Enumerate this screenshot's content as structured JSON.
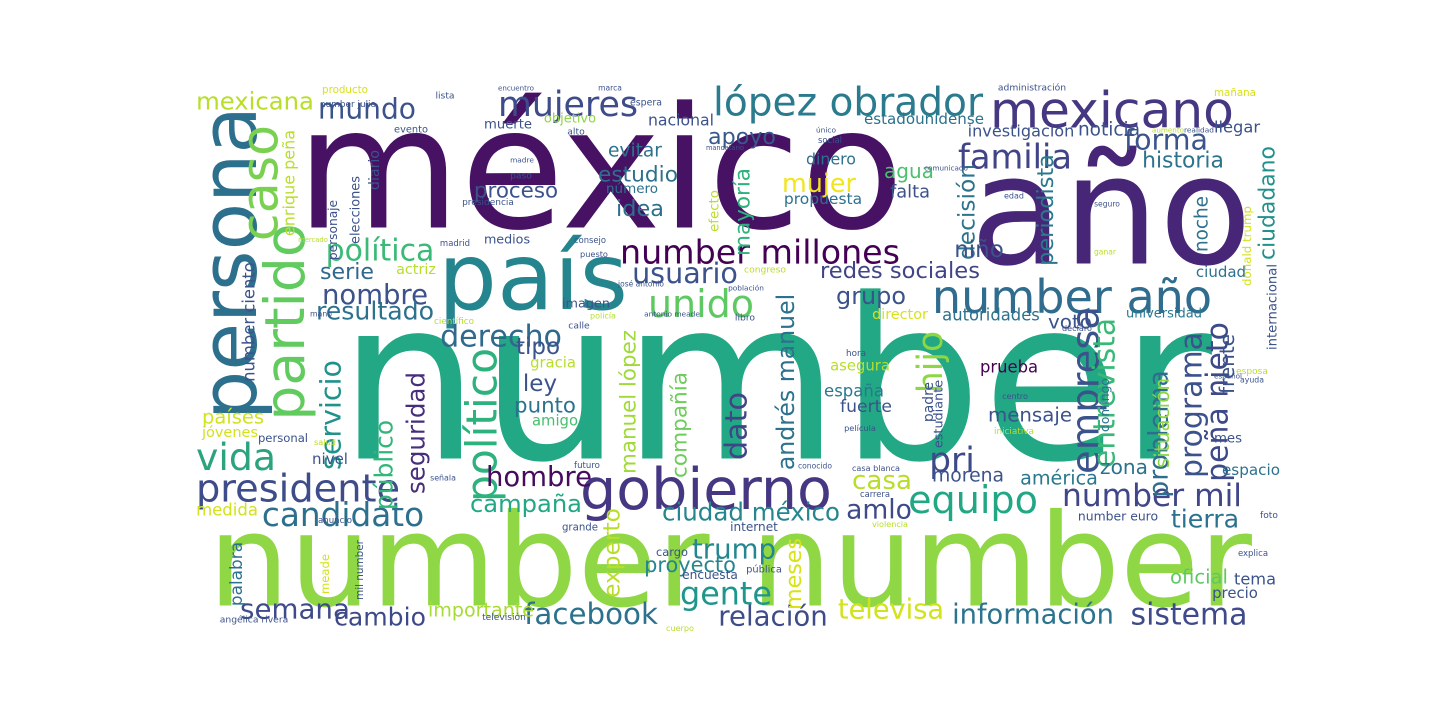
{
  "word_cloud": {
    "colors": {
      "background": "#ffffff",
      "palette": [
        "#440154",
        "#482878",
        "#3e4a89",
        "#31688e",
        "#26828e",
        "#1f9e89",
        "#35b779",
        "#6ece58",
        "#b5de2b",
        "#fde725"
      ]
    },
    "words": [
      {
        "text": "number",
        "color": "#22a884"
      },
      {
        "text": "méxico",
        "color": "#471164"
      },
      {
        "text": "number number",
        "color": "#8fd744"
      },
      {
        "text": "año",
        "color": "#482677"
      },
      {
        "text": "persona",
        "color": "#2d708e"
      },
      {
        "text": "país",
        "color": "#25858e"
      },
      {
        "text": "gobierno",
        "color": "#453781"
      },
      {
        "text": "number año",
        "color": "#2f6c8e"
      },
      {
        "text": "partido",
        "color": "#62cb5f"
      },
      {
        "text": "mexicano",
        "color": "#453781"
      },
      {
        "text": "caso",
        "color": "#7ad151"
      },
      {
        "text": "number millones",
        "color": "#440154"
      },
      {
        "text": "mundo",
        "color": "#3b528b"
      },
      {
        "text": "lópez obrador",
        "color": "#2a7b8e"
      },
      {
        "text": "mujeres",
        "color": "#3e4c8a"
      },
      {
        "text": "unido",
        "color": "#5ec962"
      },
      {
        "text": "empresa",
        "color": "#3b528b"
      },
      {
        "text": "presidente",
        "color": "#3e4c8a"
      },
      {
        "text": "equipo",
        "color": "#22a785"
      },
      {
        "text": "gente",
        "color": "#1f968b"
      },
      {
        "text": "vida",
        "color": "#2ca37f"
      },
      {
        "text": "number mil",
        "color": "#404688"
      },
      {
        "text": "candidato",
        "color": "#2d708e"
      },
      {
        "text": "peña nieto",
        "color": "#3e4989"
      },
      {
        "text": "forma",
        "color": "#3a548c"
      },
      {
        "text": "familia",
        "color": "#414487"
      },
      {
        "text": "político",
        "color": "#2db27d"
      },
      {
        "text": "hombre",
        "color": "#460b5e"
      },
      {
        "text": "servicio",
        "color": "#20928c"
      },
      {
        "text": "andrés manuel",
        "color": "#2c718e"
      },
      {
        "text": "derecho",
        "color": "#30698e"
      },
      {
        "text": "política",
        "color": "#3aba76"
      },
      {
        "text": "nombre",
        "color": "#3b528b"
      },
      {
        "text": "campaña",
        "color": "#22a884"
      },
      {
        "text": "programa",
        "color": "#3b528b"
      },
      {
        "text": "problema",
        "color": "#2f6c8e"
      },
      {
        "text": "hijo",
        "color": "#8ed645"
      },
      {
        "text": "dato",
        "color": "#414487"
      },
      {
        "text": "amlo",
        "color": "#3e4a89"
      },
      {
        "text": "trump",
        "color": "#24868e"
      },
      {
        "text": "ciudad méxico",
        "color": "#24868e"
      },
      {
        "text": "casa",
        "color": "#b8de29"
      },
      {
        "text": "mujer",
        "color": "#f1e51d"
      },
      {
        "text": "usuario",
        "color": "#3b528b"
      },
      {
        "text": "pri",
        "color": "#3e4989"
      },
      {
        "text": "facebook",
        "color": "#2c718e"
      },
      {
        "text": "información",
        "color": "#2c738e"
      },
      {
        "text": "relación",
        "color": "#3e4c8a"
      },
      {
        "text": "sistema",
        "color": "#3e4a89"
      },
      {
        "text": "semana",
        "color": "#3e4a89"
      },
      {
        "text": "cambio",
        "color": "#3e4989"
      },
      {
        "text": "televisa",
        "color": "#d2e21b"
      },
      {
        "text": "seguridad",
        "color": "#472d7b"
      },
      {
        "text": "público",
        "color": "#32b67a"
      },
      {
        "text": "entrevista",
        "color": "#38b977"
      },
      {
        "text": "historia",
        "color": "#2c738e"
      },
      {
        "text": "mexicana",
        "color": "#b8de29"
      },
      {
        "text": "proyecto",
        "color": "#24868e"
      },
      {
        "text": "manuel lópez",
        "color": "#a0da39"
      },
      {
        "text": "grupo",
        "color": "#3b528b"
      },
      {
        "text": "redes sociales",
        "color": "#414487"
      },
      {
        "text": "apoyo",
        "color": "#38588c"
      },
      {
        "text": "proceso",
        "color": "#3b528b"
      },
      {
        "text": "estudio",
        "color": "#2d708e"
      },
      {
        "text": "idea",
        "color": "#2d708e"
      },
      {
        "text": "mayoría",
        "color": "#2db27d"
      },
      {
        "text": "agua",
        "color": "#4ac16d"
      },
      {
        "text": "decisión",
        "color": "#2c738e"
      },
      {
        "text": "periodista",
        "color": "#2a788e"
      },
      {
        "text": "ciudadano",
        "color": "#21918c"
      },
      {
        "text": "resultado",
        "color": "#2c718e"
      },
      {
        "text": "serie",
        "color": "#31688e"
      },
      {
        "text": "tipo",
        "color": "#3b528b"
      },
      {
        "text": "ley",
        "color": "#3b528b"
      },
      {
        "text": "punto",
        "color": "#2c718e"
      },
      {
        "text": "amigo",
        "color": "#46c06f"
      },
      {
        "text": "compañía",
        "color": "#6ccd5a"
      },
      {
        "text": "experto",
        "color": "#b8de29"
      },
      {
        "text": "meses",
        "color": "#d8e219"
      },
      {
        "text": "importante",
        "color": "#a8db34"
      },
      {
        "text": "tierra",
        "color": "#2c728e"
      },
      {
        "text": "tema",
        "color": "#3b528b"
      },
      {
        "text": "oficial",
        "color": "#5ec962"
      },
      {
        "text": "zona",
        "color": "#2c728e"
      },
      {
        "text": "américa",
        "color": "#2a788e"
      },
      {
        "text": "morena",
        "color": "#3b528b"
      },
      {
        "text": "mensaje",
        "color": "#3b528b"
      },
      {
        "text": "españa",
        "color": "#2a788e"
      },
      {
        "text": "asegura",
        "color": "#b8de29"
      },
      {
        "text": "fuerte",
        "color": "#3b528b"
      },
      {
        "text": "niño",
        "color": "#3b528b"
      },
      {
        "text": "voto",
        "color": "#3b528b"
      },
      {
        "text": "director",
        "color": "#d8e219"
      },
      {
        "text": "autoridades",
        "color": "#2c718e"
      },
      {
        "text": "universidad",
        "color": "#2a788e"
      },
      {
        "text": "frente",
        "color": "#3b528b"
      },
      {
        "text": "situación",
        "color": "#8ed645"
      },
      {
        "text": "prueba",
        "color": "#440154"
      },
      {
        "text": "dinero",
        "color": "#2c718e"
      },
      {
        "text": "propuesta",
        "color": "#2c718e"
      },
      {
        "text": "falta",
        "color": "#3b528b"
      },
      {
        "text": "noticia",
        "color": "#3b528b"
      },
      {
        "text": "llegar",
        "color": "#3b528b"
      },
      {
        "text": "nacional",
        "color": "#3b528b"
      },
      {
        "text": "evitar",
        "color": "#2c718e"
      },
      {
        "text": "número",
        "color": "#2c718e"
      },
      {
        "text": "mes",
        "color": "#3b528b"
      },
      {
        "text": "espacio",
        "color": "#2c728e"
      },
      {
        "text": "internet",
        "color": "#3b528b"
      },
      {
        "text": "encuesta",
        "color": "#3b528b"
      },
      {
        "text": "precio",
        "color": "#3b528b"
      },
      {
        "text": "number euro",
        "color": "#3b528b"
      },
      {
        "text": "ciudad",
        "color": "#2c718e"
      },
      {
        "text": "noche",
        "color": "#2c718e"
      },
      {
        "text": "number ciento",
        "color": "#3b528b"
      },
      {
        "text": "enrique peña",
        "color": "#b8de29"
      },
      {
        "text": "países",
        "color": "#d2e21b"
      },
      {
        "text": "jóvenes",
        "color": "#d2e21b"
      },
      {
        "text": "medida",
        "color": "#d2e21b"
      },
      {
        "text": "palabra",
        "color": "#2c718e"
      },
      {
        "text": "mil number",
        "color": "#3b528b"
      },
      {
        "text": "meade",
        "color": "#d2e21b"
      },
      {
        "text": "nivel",
        "color": "#3b528b"
      },
      {
        "text": "personal",
        "color": "#3b528b"
      },
      {
        "text": "actriz",
        "color": "#b8de29"
      },
      {
        "text": "medios",
        "color": "#3b528b"
      },
      {
        "text": "imagen",
        "color": "#3b528b"
      },
      {
        "text": "gracia",
        "color": "#b8de29"
      },
      {
        "text": "objetivo",
        "color": "#8ed645"
      },
      {
        "text": "muerte",
        "color": "#3b528b"
      },
      {
        "text": "investigación",
        "color": "#3b528b"
      },
      {
        "text": "estadounidense",
        "color": "#2c718e"
      },
      {
        "text": "producto",
        "color": "#d8e219"
      },
      {
        "text": "mañana",
        "color": "#d8e219"
      },
      {
        "text": "padre",
        "color": "#3b528b"
      },
      {
        "text": "estudiante",
        "color": "#3b528b"
      },
      {
        "text": "domingo",
        "color": "#2c718e"
      },
      {
        "text": "esposa",
        "color": "#b8de29"
      },
      {
        "text": "internacional",
        "color": "#3b528b"
      },
      {
        "text": "diario",
        "color": "#3b528b"
      },
      {
        "text": "personaje",
        "color": "#3b528b"
      },
      {
        "text": "elecciones",
        "color": "#3b528b"
      },
      {
        "text": "donald trump",
        "color": "#d2e21b"
      },
      {
        "text": "congreso",
        "color": "#b8de29"
      },
      {
        "text": "efecto",
        "color": "#b8de29"
      },
      {
        "text": "cargo",
        "color": "#3b528b"
      },
      {
        "text": "pública",
        "color": "#3b528b"
      },
      {
        "text": "grande",
        "color": "#3b528b"
      },
      {
        "text": "anuncio",
        "color": "#3b528b"
      },
      {
        "text": "aumento",
        "color": "#b8de29"
      },
      {
        "text": "evento",
        "color": "#3b528b"
      },
      {
        "text": "espera",
        "color": "#3b528b"
      },
      {
        "text": "encuentro",
        "color": "#3b528b"
      },
      {
        "text": "marca",
        "color": "#3b528b"
      },
      {
        "text": "administración",
        "color": "#3b528b"
      },
      {
        "text": "lista",
        "color": "#3b528b"
      },
      {
        "text": "number julio",
        "color": "#3b528b"
      },
      {
        "text": "alto",
        "color": "#3b528b"
      },
      {
        "text": "madre",
        "color": "#3b528b"
      },
      {
        "text": "paso",
        "color": "#3b528b"
      },
      {
        "text": "presidencia",
        "color": "#3b528b"
      },
      {
        "text": "mandatario",
        "color": "#3b528b"
      },
      {
        "text": "único",
        "color": "#3b528b"
      },
      {
        "text": "social",
        "color": "#3b528b"
      },
      {
        "text": "realidad",
        "color": "#3b528b"
      },
      {
        "text": "comunicado",
        "color": "#3b528b"
      },
      {
        "text": "edad",
        "color": "#3b528b"
      },
      {
        "text": "seguro",
        "color": "#3b528b"
      },
      {
        "text": "ganar",
        "color": "#b8de29"
      },
      {
        "text": "madrid",
        "color": "#3b528b"
      },
      {
        "text": "consejo",
        "color": "#3b528b"
      },
      {
        "text": "puesto",
        "color": "#3b528b"
      },
      {
        "text": "mercado",
        "color": "#b8de29"
      },
      {
        "text": "josé antonio",
        "color": "#3b528b"
      },
      {
        "text": "población",
        "color": "#3b528b"
      },
      {
        "text": "antonio meade",
        "color": "#3b528b"
      },
      {
        "text": "libro",
        "color": "#3b528b"
      },
      {
        "text": "policía",
        "color": "#b8de29"
      },
      {
        "text": "calle",
        "color": "#3b528b"
      },
      {
        "text": "mano",
        "color": "#3b528b"
      },
      {
        "text": "científico",
        "color": "#b8de29"
      },
      {
        "text": "hora",
        "color": "#3b528b"
      },
      {
        "text": "declaró",
        "color": "#3b528b"
      },
      {
        "text": "centro",
        "color": "#3b528b"
      },
      {
        "text": "película",
        "color": "#3b528b"
      },
      {
        "text": "iniciativa",
        "color": "#b8de29"
      },
      {
        "text": "ayuda",
        "color": "#3b528b"
      },
      {
        "text": "salud",
        "color": "#b8de29"
      },
      {
        "text": "señala",
        "color": "#3b528b"
      },
      {
        "text": "futuro",
        "color": "#3b528b"
      },
      {
        "text": "conocido",
        "color": "#3b528b"
      },
      {
        "text": "casa blanca",
        "color": "#3b528b"
      },
      {
        "text": "carrera",
        "color": "#3b528b"
      },
      {
        "text": "violencia",
        "color": "#b8de29"
      },
      {
        "text": "foto",
        "color": "#3b528b"
      },
      {
        "text": "explica",
        "color": "#3b528b"
      },
      {
        "text": "español",
        "color": "#3b528b"
      },
      {
        "text": "angélica rivera",
        "color": "#3b528b"
      },
      {
        "text": "televisión",
        "color": "#3b528b"
      },
      {
        "text": "cuerpo",
        "color": "#b8de29"
      }
    ]
  }
}
